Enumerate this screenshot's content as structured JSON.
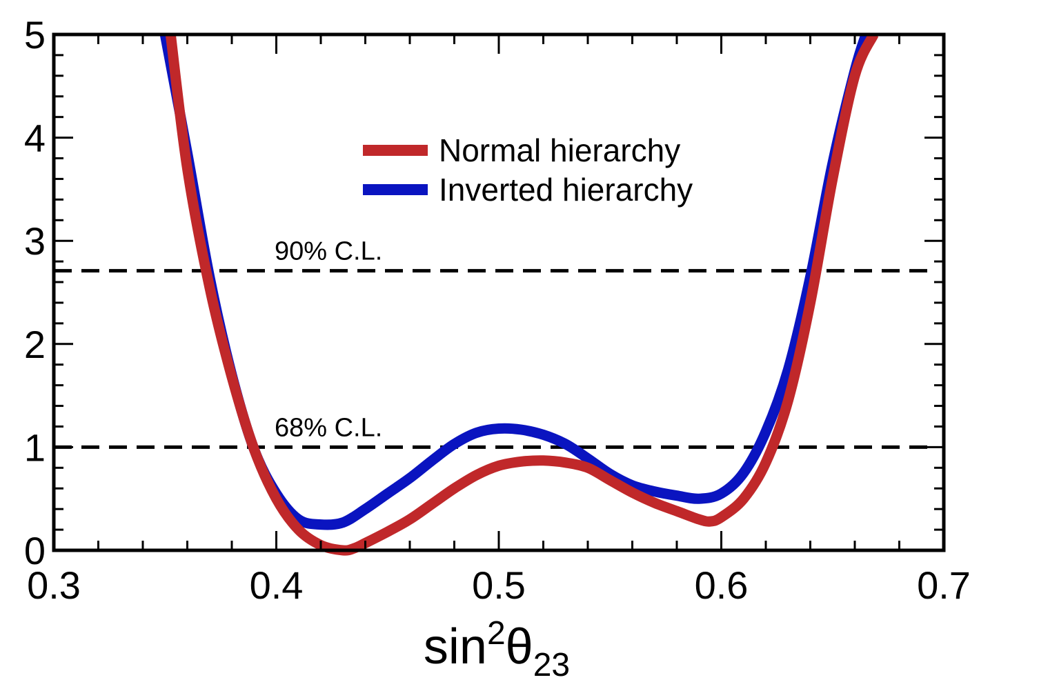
{
  "chart_data": {
    "type": "line",
    "title": "",
    "xlabel": {
      "base": "sin",
      "sup": "2",
      "symbol": "θ",
      "sub": "23"
    },
    "ylabel": "",
    "xlim": [
      0.3,
      0.7
    ],
    "ylim": [
      0,
      5
    ],
    "xticks": [
      "0.3",
      "0.4",
      "0.5",
      "0.6",
      "0.7"
    ],
    "yticks": [
      "0",
      "1",
      "2",
      "3",
      "4",
      "5"
    ],
    "grid": false,
    "legend_position": "top-center",
    "series": [
      {
        "name": "Normal hierarchy",
        "color": "#c0282a",
        "x": [
          0.3525,
          0.36,
          0.37,
          0.38,
          0.39,
          0.4,
          0.41,
          0.42,
          0.43,
          0.435,
          0.44,
          0.45,
          0.46,
          0.47,
          0.48,
          0.49,
          0.5,
          0.51,
          0.52,
          0.53,
          0.54,
          0.55,
          0.56,
          0.57,
          0.58,
          0.59,
          0.595,
          0.6,
          0.61,
          0.62,
          0.63,
          0.64,
          0.65,
          0.66,
          0.6685
        ],
        "y": [
          5.0,
          3.7,
          2.55,
          1.68,
          0.98,
          0.5,
          0.2,
          0.05,
          0.0,
          0.02,
          0.07,
          0.18,
          0.3,
          0.45,
          0.6,
          0.73,
          0.82,
          0.86,
          0.87,
          0.85,
          0.8,
          0.68,
          0.56,
          0.46,
          0.38,
          0.3,
          0.28,
          0.32,
          0.5,
          0.85,
          1.45,
          2.4,
          3.6,
          4.6,
          5.0
        ]
      },
      {
        "name": "Inverted hierarchy",
        "color": "#0a14c0",
        "x": [
          0.35,
          0.36,
          0.37,
          0.38,
          0.39,
          0.4,
          0.41,
          0.42,
          0.43,
          0.44,
          0.45,
          0.46,
          0.47,
          0.48,
          0.49,
          0.5,
          0.51,
          0.52,
          0.53,
          0.54,
          0.55,
          0.56,
          0.57,
          0.58,
          0.59,
          0.6,
          0.61,
          0.62,
          0.63,
          0.64,
          0.65,
          0.66,
          0.665
        ],
        "y": [
          5.0,
          3.85,
          2.65,
          1.7,
          0.98,
          0.55,
          0.3,
          0.25,
          0.27,
          0.4,
          0.55,
          0.7,
          0.87,
          1.03,
          1.14,
          1.18,
          1.17,
          1.12,
          1.03,
          0.89,
          0.74,
          0.63,
          0.57,
          0.53,
          0.5,
          0.55,
          0.75,
          1.15,
          1.75,
          2.65,
          3.75,
          4.65,
          5.0
        ]
      }
    ],
    "reference_lines": [
      {
        "label": "90% C.L.",
        "y": 2.71
      },
      {
        "label": "68% C.L.",
        "y": 1.0
      }
    ]
  }
}
